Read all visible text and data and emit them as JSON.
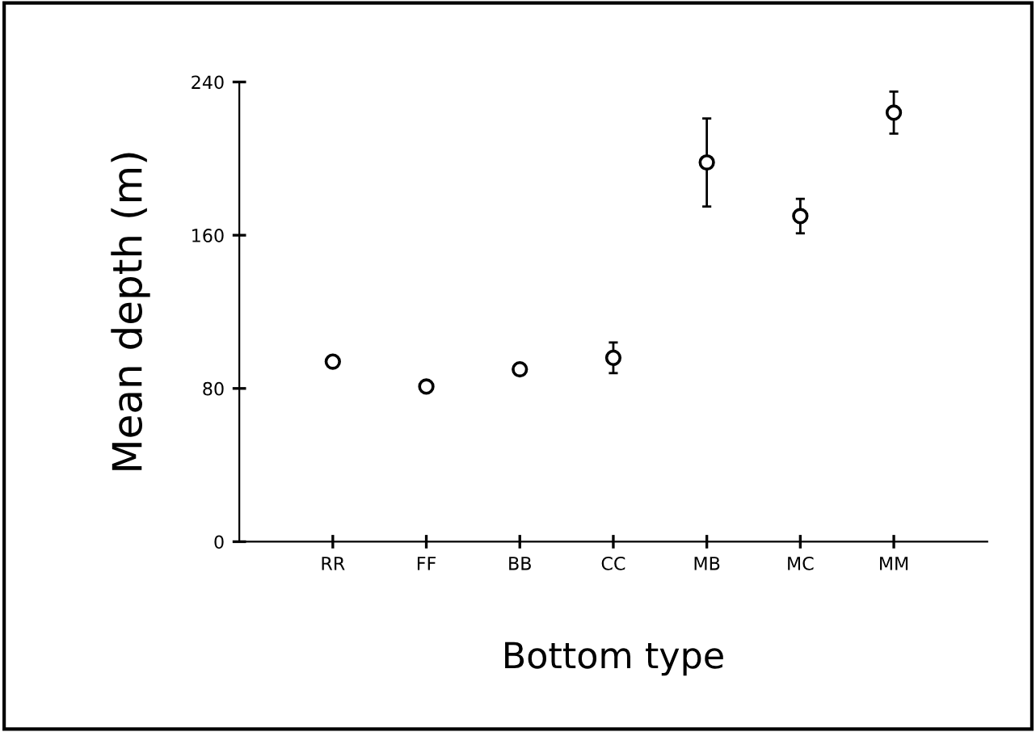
{
  "chart_data": {
    "type": "scatter",
    "xlabel": "Bottom type",
    "ylabel": "Mean depth (m)",
    "categories": [
      "RR",
      "FF",
      "BB",
      "CC",
      "MB",
      "MC",
      "MM"
    ],
    "series": [
      {
        "color": "#000000",
        "values": [
          94,
          81,
          90,
          96,
          198,
          170,
          224
        ],
        "errors": [
          null,
          null,
          null,
          8,
          23,
          9,
          11
        ]
      }
    ],
    "ylim": [
      0,
      240
    ],
    "yticks": [
      0,
      80,
      160,
      240
    ],
    "marker": "circle",
    "grid": false,
    "legend": false
  }
}
